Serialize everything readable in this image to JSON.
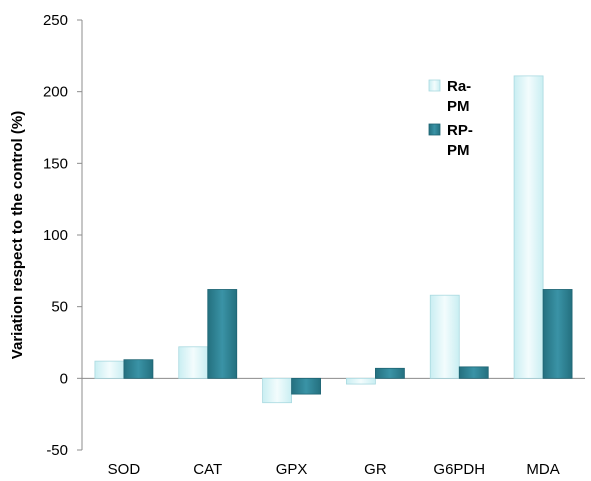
{
  "chart_data": {
    "type": "bar",
    "title": "",
    "xlabel": "",
    "ylabel": "Variation respect to the control (%)",
    "ylim": [
      -50,
      250
    ],
    "yticks": [
      -50,
      0,
      50,
      100,
      150,
      200,
      250
    ],
    "categories": [
      "SOD",
      "CAT",
      "GPX",
      "GR",
      "G6PDH",
      "MDA"
    ],
    "series": [
      {
        "name": "Ra-PM",
        "name_lines": [
          "Ra-",
          "PM"
        ],
        "color": "#DDF6F8",
        "edge": "#A9D9E0",
        "values": [
          12,
          22,
          -17,
          -4,
          58,
          211
        ]
      },
      {
        "name": "RP-PM",
        "name_lines": [
          "RP-",
          "PM"
        ],
        "color": "#2F8799",
        "edge": "#1E6473",
        "values": [
          13,
          62,
          -11,
          7,
          8,
          62
        ]
      }
    ],
    "grid": false,
    "legend_position": "top-right"
  }
}
